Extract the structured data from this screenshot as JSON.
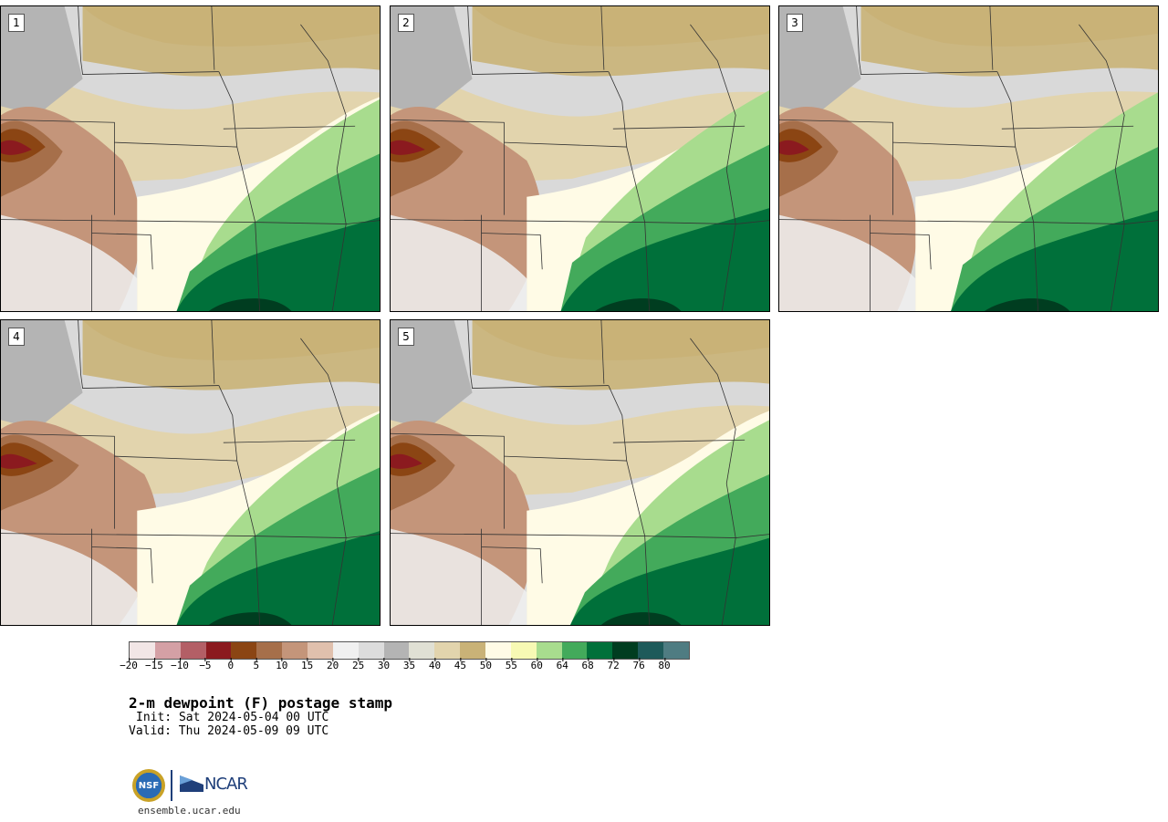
{
  "figure": {
    "title": "2-m dewpoint (F) postage stamp",
    "init": "Init: Sat 2024-05-04 00 UTC",
    "valid": "Valid: Thu 2024-05-09 09 UTC",
    "website": "ensemble.ucar.edu"
  },
  "members": [
    {
      "label": "1",
      "dry": 0.3,
      "moist": 0.55
    },
    {
      "label": "2",
      "dry": 0.5,
      "moist": 0.75
    },
    {
      "label": "3",
      "dry": 0.25,
      "moist": 0.7
    },
    {
      "label": "4",
      "dry": 0.6,
      "moist": 0.55
    },
    {
      "label": "5",
      "dry": 0.35,
      "moist": 0.4
    }
  ],
  "colorbar": {
    "ticks": [
      "−20",
      "−15",
      "−10",
      "−5",
      "0",
      "5",
      "10",
      "15",
      "20",
      "25",
      "30",
      "35",
      "40",
      "45",
      "50",
      "55",
      "60",
      "64",
      "68",
      "72",
      "76",
      "80"
    ],
    "colors": [
      "#f2e6e6",
      "#d4a0a5",
      "#b35f66",
      "#8b1a1f",
      "#8b4513",
      "#a66f4a",
      "#c4957a",
      "#e0c0ad",
      "#f0f0f0",
      "#dcdcdc",
      "#b4b4b4",
      "#e0e0d4",
      "#e2d4ad",
      "#c9b277",
      "#fffbe6",
      "#f7f9b4",
      "#a8dc8e",
      "#43aa5b",
      "#00703a",
      "#003d20",
      "#1e5a5a",
      "#4f7c82"
    ]
  },
  "logos": {
    "nsf": "NSF",
    "ncar": "NCAR"
  }
}
